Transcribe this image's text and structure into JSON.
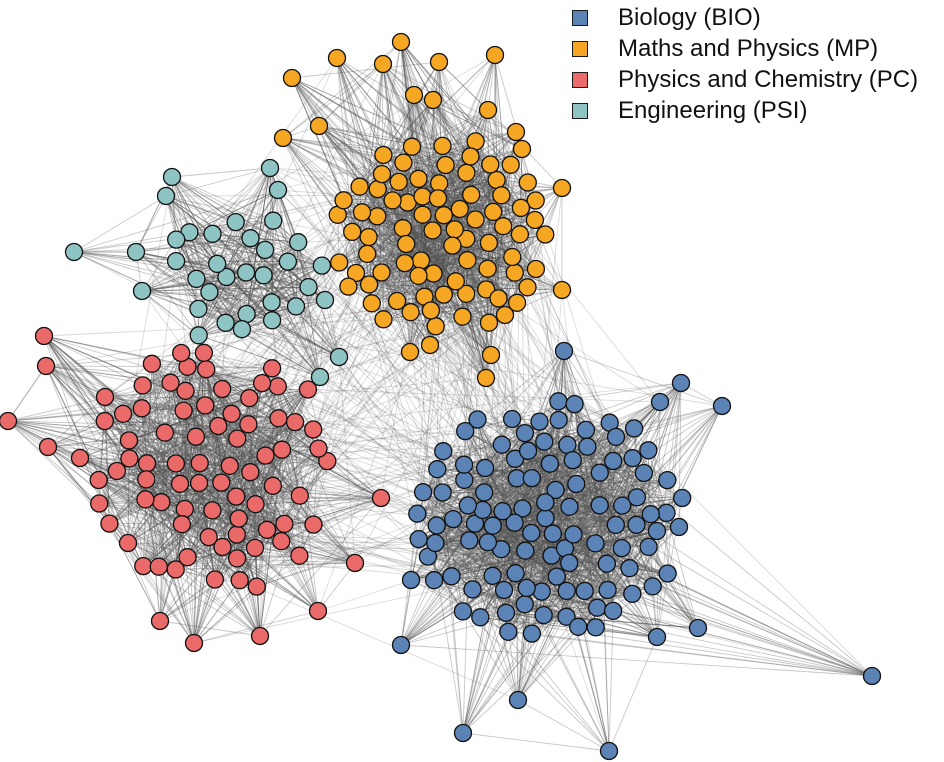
{
  "legend": {
    "items": [
      {
        "label": "Biology (BIO)",
        "key": "BIO",
        "color": "#5b83b6"
      },
      {
        "label": "Maths and Physics (MP)",
        "key": "MP",
        "color": "#f5a623"
      },
      {
        "label": "Physics and Chemistry (PC)",
        "key": "PC",
        "color": "#e96a69"
      },
      {
        "label": "Engineering (PSI)",
        "key": "PSI",
        "color": "#8fc4c5"
      }
    ]
  },
  "style": {
    "edge_color": "#555555",
    "node_border": "#111111"
  }
}
